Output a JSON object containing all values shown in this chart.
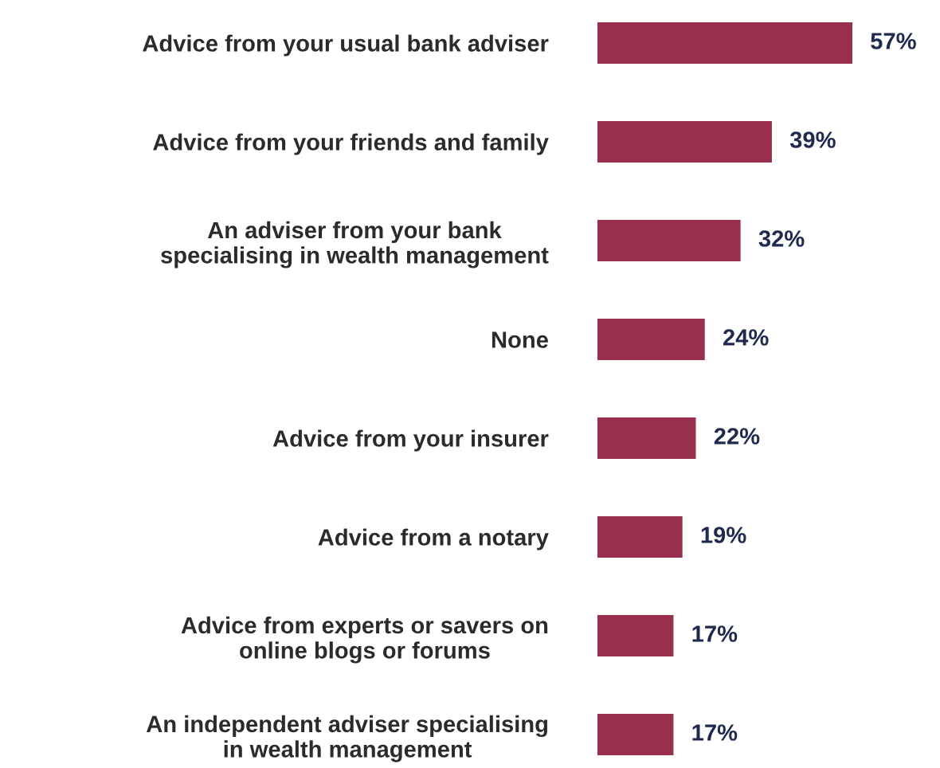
{
  "chart_data": {
    "type": "bar",
    "orientation": "horizontal",
    "categories": [
      "Advice from your usual bank adviser",
      "Advice from your friends and family",
      "An adviser from your bank\nspecialising in wealth management",
      "None",
      "Advice from your insurer",
      "Advice from a notary",
      "Advice from experts or savers on\nonline blogs or forums",
      "An independent adviser specialising\nin wealth management"
    ],
    "values": [
      57,
      39,
      32,
      24,
      22,
      19,
      17,
      17
    ],
    "value_labels": [
      "57%",
      "39%",
      "32%",
      "24%",
      "22%",
      "19%",
      "17%",
      "17%"
    ],
    "color": "#99304d",
    "grid": false,
    "legend": false
  }
}
